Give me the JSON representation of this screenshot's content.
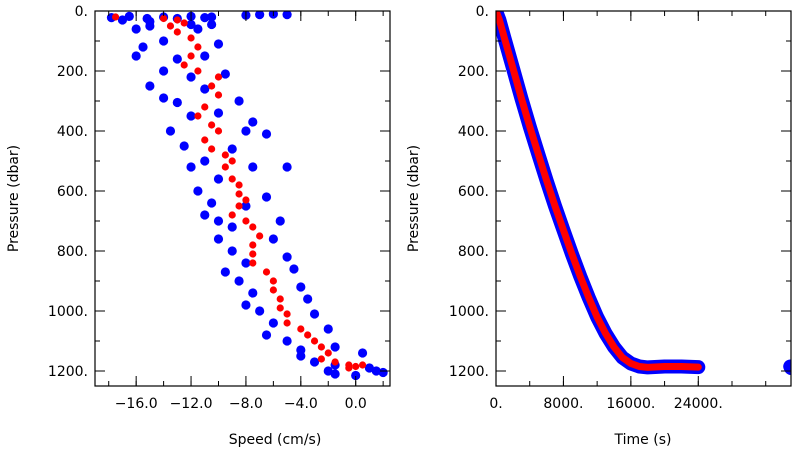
{
  "chart_data": [
    {
      "type": "scatter",
      "title": "",
      "xlabel": "Speed (cm/s)",
      "ylabel": "Pressure (dbar)",
      "xlim": [
        -19.0,
        2.5
      ],
      "ylim": [
        1250,
        0
      ],
      "y_inverted": true,
      "grid": false,
      "x_ticks": [
        {
          "value": -16.0,
          "label": "−16.0"
        },
        {
          "value": -12.0,
          "label": "−12.0"
        },
        {
          "value": -8.0,
          "label": "−8.0"
        },
        {
          "value": -4.0,
          "label": "−4.0"
        },
        {
          "value": 0.0,
          "label": "0.0"
        }
      ],
      "y_ticks": [
        {
          "value": 0,
          "label": "0."
        },
        {
          "value": 200,
          "label": "200."
        },
        {
          "value": 400,
          "label": "400."
        },
        {
          "value": 600,
          "label": "600."
        },
        {
          "value": 800,
          "label": "800."
        },
        {
          "value": 1000,
          "label": "1000."
        },
        {
          "value": 1200,
          "label": "1200."
        }
      ],
      "series": [
        {
          "color": "#0000ff",
          "role": "cloud",
          "points": [
            [
              -17.8,
              22
            ],
            [
              -16.5,
              18
            ],
            [
              -15.2,
              25
            ],
            [
              -14.0,
              20
            ],
            [
              -13.0,
              25
            ],
            [
              -12.0,
              18
            ],
            [
              -11.0,
              22
            ],
            [
              -10.5,
              20
            ],
            [
              -8.0,
              14
            ],
            [
              -7.0,
              12
            ],
            [
              -6.0,
              10
            ],
            [
              -5.0,
              12
            ],
            [
              -17.0,
              30
            ],
            [
              -15.0,
              35
            ],
            [
              -16.0,
              60
            ],
            [
              -15.0,
              50
            ],
            [
              -12.0,
              45
            ],
            [
              -11.5,
              60
            ],
            [
              -10.5,
              45
            ],
            [
              -14.0,
              100
            ],
            [
              -15.5,
              120
            ],
            [
              -16.0,
              150
            ],
            [
              -13.0,
              160
            ],
            [
              -11.0,
              150
            ],
            [
              -10.0,
              110
            ],
            [
              -14.0,
              200
            ],
            [
              -12.0,
              220
            ],
            [
              -9.5,
              210
            ],
            [
              -15.0,
              250
            ],
            [
              -11.0,
              260
            ],
            [
              -14.0,
              290
            ],
            [
              -13.0,
              305
            ],
            [
              -8.5,
              300
            ],
            [
              -12.0,
              350
            ],
            [
              -10.0,
              340
            ],
            [
              -7.5,
              370
            ],
            [
              -13.5,
              400
            ],
            [
              -12.5,
              450
            ],
            [
              -8.0,
              400
            ],
            [
              -6.5,
              410
            ],
            [
              -9.0,
              460
            ],
            [
              -12.0,
              520
            ],
            [
              -11.0,
              500
            ],
            [
              -7.5,
              520
            ],
            [
              -5.0,
              520
            ],
            [
              -10.0,
              560
            ],
            [
              -11.5,
              600
            ],
            [
              -10.5,
              640
            ],
            [
              -6.5,
              620
            ],
            [
              -8.0,
              650
            ],
            [
              -11.0,
              680
            ],
            [
              -10.0,
              700
            ],
            [
              -9.0,
              720
            ],
            [
              -5.5,
              700
            ],
            [
              -6.0,
              760
            ],
            [
              -10.0,
              760
            ],
            [
              -9.0,
              800
            ],
            [
              -8.0,
              840
            ],
            [
              -5.0,
              820
            ],
            [
              -4.5,
              860
            ],
            [
              -9.5,
              870
            ],
            [
              -8.5,
              900
            ],
            [
              -7.5,
              940
            ],
            [
              -4.0,
              920
            ],
            [
              -3.5,
              960
            ],
            [
              -8.0,
              980
            ],
            [
              -7.0,
              1000
            ],
            [
              -6.0,
              1040
            ],
            [
              -3.0,
              1010
            ],
            [
              -2.0,
              1060
            ],
            [
              -6.5,
              1080
            ],
            [
              -5.0,
              1100
            ],
            [
              -4.0,
              1130
            ],
            [
              -1.5,
              1120
            ],
            [
              0.5,
              1140
            ],
            [
              -4.0,
              1150
            ],
            [
              -3.0,
              1170
            ],
            [
              -1.5,
              1180
            ],
            [
              1.0,
              1190
            ],
            [
              1.5,
              1200
            ],
            [
              -1.5,
              1210
            ],
            [
              2.0,
              1205
            ],
            [
              0.0,
              1215
            ],
            [
              -2.0,
              1200
            ]
          ]
        },
        {
          "color": "#ff0000",
          "role": "mean",
          "points": [
            [
              -17.5,
              20
            ],
            [
              -14.0,
              25
            ],
            [
              -13.0,
              30
            ],
            [
              -12.5,
              40
            ],
            [
              -13.5,
              50
            ],
            [
              -13.0,
              70
            ],
            [
              -12.0,
              90
            ],
            [
              -11.5,
              120
            ],
            [
              -12.0,
              150
            ],
            [
              -12.5,
              180
            ],
            [
              -11.5,
              200
            ],
            [
              -10.0,
              220
            ],
            [
              -10.5,
              250
            ],
            [
              -10.0,
              280
            ],
            [
              -11.0,
              320
            ],
            [
              -11.5,
              350
            ],
            [
              -10.5,
              380
            ],
            [
              -10.0,
              400
            ],
            [
              -11.0,
              430
            ],
            [
              -10.5,
              460
            ],
            [
              -9.5,
              480
            ],
            [
              -9.0,
              500
            ],
            [
              -9.5,
              520
            ],
            [
              -9.0,
              560
            ],
            [
              -8.5,
              580
            ],
            [
              -8.5,
              610
            ],
            [
              -8.0,
              630
            ],
            [
              -8.5,
              650
            ],
            [
              -9.0,
              680
            ],
            [
              -8.0,
              700
            ],
            [
              -7.5,
              720
            ],
            [
              -7.0,
              750
            ],
            [
              -7.5,
              780
            ],
            [
              -7.5,
              810
            ],
            [
              -7.5,
              840
            ],
            [
              -6.5,
              870
            ],
            [
              -6.0,
              900
            ],
            [
              -6.0,
              930
            ],
            [
              -5.5,
              960
            ],
            [
              -5.5,
              990
            ],
            [
              -5.0,
              1010
            ],
            [
              -5.0,
              1040
            ],
            [
              -4.0,
              1060
            ],
            [
              -3.5,
              1080
            ],
            [
              -3.0,
              1100
            ],
            [
              -2.5,
              1120
            ],
            [
              -2.0,
              1140
            ],
            [
              -2.5,
              1160
            ],
            [
              -1.5,
              1170
            ],
            [
              -0.5,
              1180
            ],
            [
              0.0,
              1185
            ],
            [
              -0.5,
              1190
            ],
            [
              0.5,
              1180
            ]
          ]
        }
      ]
    },
    {
      "type": "line",
      "title": "",
      "xlabel": "Time (s)",
      "ylabel": "Pressure (dbar)",
      "xlim": [
        0,
        35000
      ],
      "ylim": [
        1250,
        0
      ],
      "y_inverted": true,
      "grid": false,
      "x_ticks": [
        {
          "value": 0,
          "label": "0."
        },
        {
          "value": 8000,
          "label": "8000."
        },
        {
          "value": 16000,
          "label": "16000."
        },
        {
          "value": 24000,
          "label": "24000."
        }
      ],
      "y_ticks": [
        {
          "value": 0,
          "label": "0."
        },
        {
          "value": 200,
          "label": "200."
        },
        {
          "value": 400,
          "label": "400."
        },
        {
          "value": 600,
          "label": "600."
        },
        {
          "value": 800,
          "label": "800."
        },
        {
          "value": 1000,
          "label": "1000."
        },
        {
          "value": 1200,
          "label": "1200."
        }
      ],
      "series": [
        {
          "color": "#0000ff",
          "role": "outline",
          "points": [
            [
              0,
              0
            ],
            [
              400,
              30
            ],
            [
              1000,
              90
            ],
            [
              2000,
              190
            ],
            [
              3000,
              290
            ],
            [
              4000,
              385
            ],
            [
              5000,
              475
            ],
            [
              6000,
              565
            ],
            [
              7000,
              650
            ],
            [
              8000,
              730
            ],
            [
              9000,
              810
            ],
            [
              10000,
              885
            ],
            [
              11000,
              955
            ],
            [
              12000,
              1020
            ],
            [
              13000,
              1075
            ],
            [
              14000,
              1120
            ],
            [
              15000,
              1155
            ],
            [
              16000,
              1175
            ],
            [
              17000,
              1185
            ],
            [
              18000,
              1188
            ],
            [
              20000,
              1185
            ],
            [
              22000,
              1185
            ],
            [
              24000,
              1187
            ]
          ]
        },
        {
          "color": "#ff0000",
          "role": "centre",
          "points": [
            [
              0,
              0
            ],
            [
              400,
              30
            ],
            [
              1000,
              90
            ],
            [
              2000,
              190
            ],
            [
              3000,
              290
            ],
            [
              4000,
              385
            ],
            [
              5000,
              475
            ],
            [
              6000,
              565
            ],
            [
              7000,
              650
            ],
            [
              8000,
              730
            ],
            [
              9000,
              810
            ],
            [
              10000,
              885
            ],
            [
              11000,
              955
            ],
            [
              12000,
              1020
            ],
            [
              13000,
              1075
            ],
            [
              14000,
              1120
            ],
            [
              15000,
              1155
            ],
            [
              16000,
              1175
            ],
            [
              17000,
              1185
            ],
            [
              18000,
              1188
            ],
            [
              20000,
              1185
            ],
            [
              22000,
              1185
            ],
            [
              24000,
              1187
            ]
          ]
        },
        {
          "color": "#0000ff",
          "role": "edge-segment",
          "points": [
            [
              34900,
              1185
            ],
            [
              35000,
              1190
            ]
          ]
        }
      ]
    }
  ]
}
